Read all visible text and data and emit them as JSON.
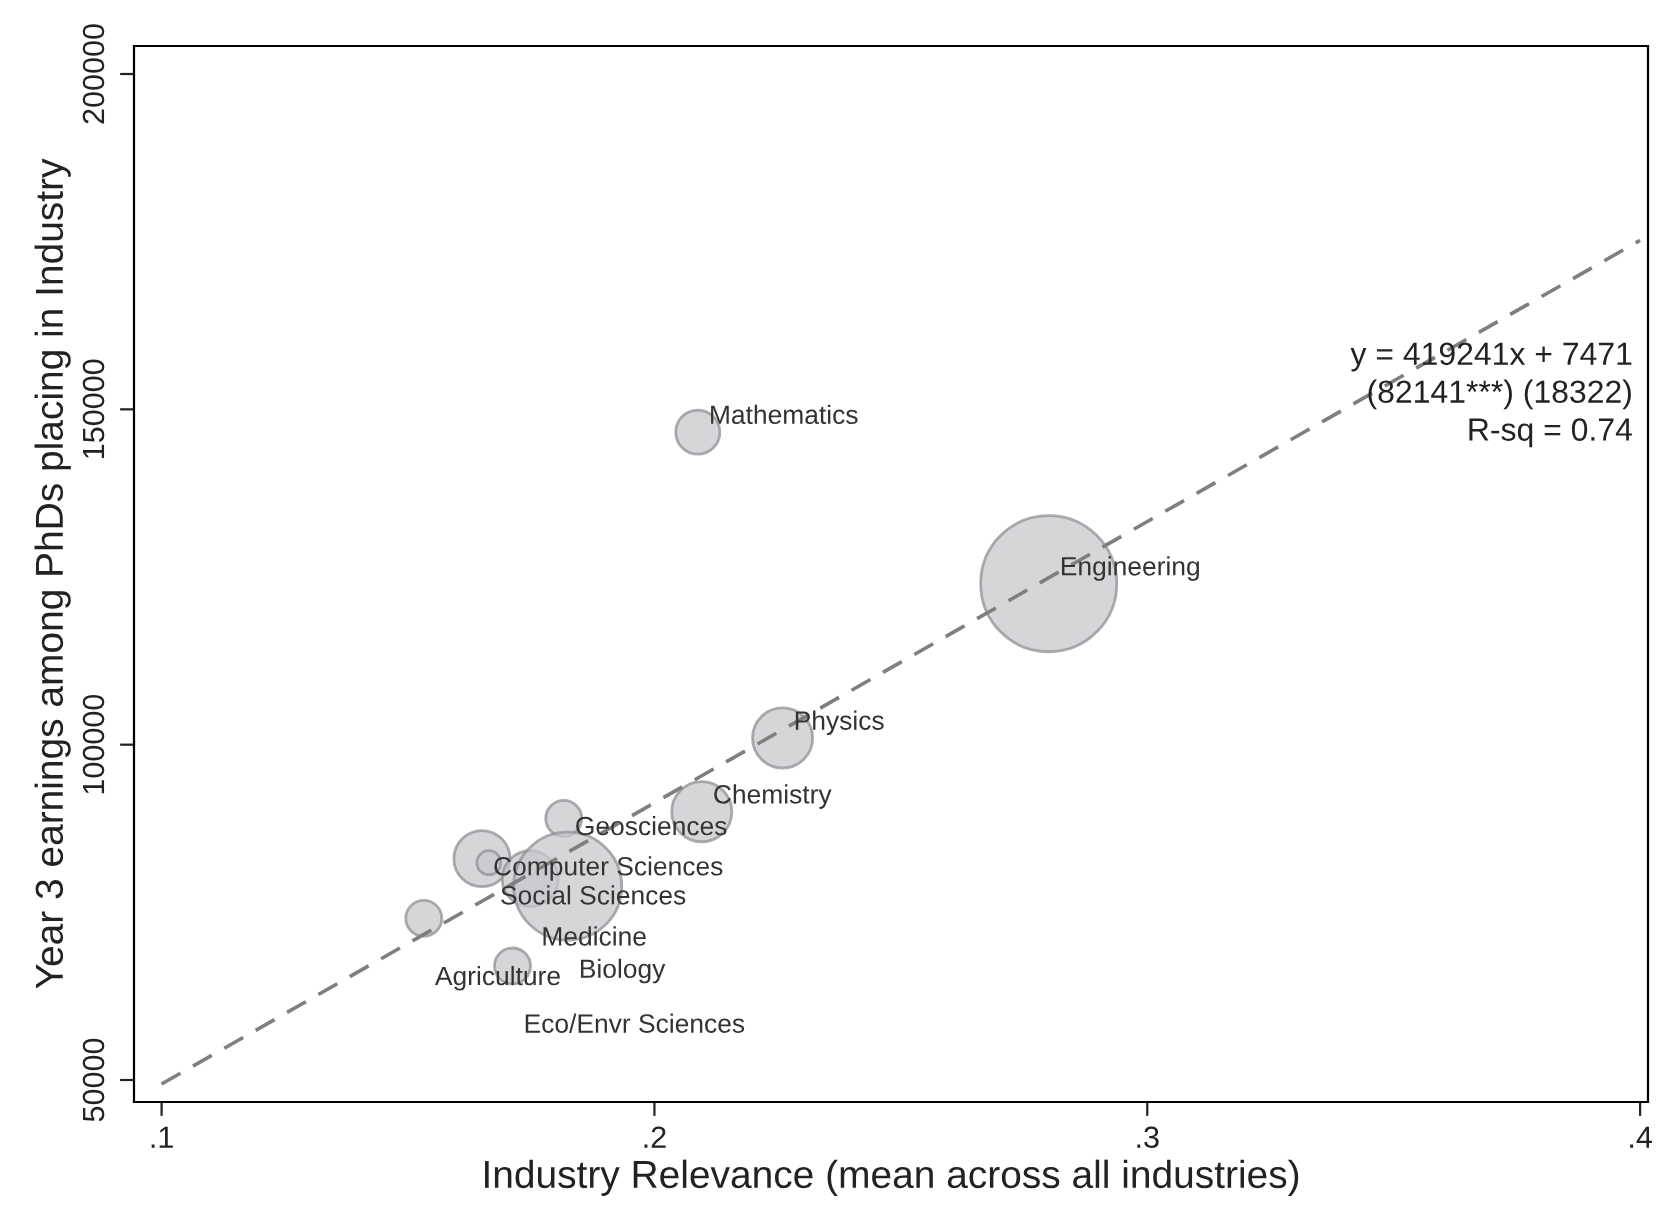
{
  "chart_data": {
    "type": "bubble",
    "xlabel": "Industry Relevance (mean across all industries)",
    "ylabel": "Year 3 earnings among PhDs placing in Industry",
    "xlim": [
      0.0944,
      0.4016
    ],
    "ylim": [
      46720,
      204175
    ],
    "xticks": [
      {
        "value": 0.1,
        "label": ".1"
      },
      {
        "value": 0.2,
        "label": ".2"
      },
      {
        "value": 0.3,
        "label": ".3"
      },
      {
        "value": 0.4,
        "label": ".4"
      }
    ],
    "yticks": [
      50000,
      100000,
      150000,
      200000
    ],
    "grid": false,
    "legend": false,
    "series": [
      {
        "color": "#c8c8cc",
        "x": [
          0.2088,
          0.28,
          0.226,
          0.2096,
          0.1816,
          0.165,
          0.1664,
          0.1748,
          0.1824,
          0.1532,
          0.1712
        ],
        "values": [
          146600,
          124000,
          101000,
          90000,
          89000,
          83000,
          82400,
          80000,
          78900,
          74100,
          67000
        ],
        "sizes": [
          0.105,
          1,
          0.195,
          0.195,
          0.07,
          0.17,
          0.031,
          0.17,
          0.63,
          0.07,
          0.07
        ]
      },
      {
        "type": "line",
        "color": "#7f7f7f",
        "line_style": "dashed",
        "marker": "none",
        "x": [
          0.1,
          0.4
        ],
        "values": [
          49400,
          175200
        ]
      }
    ],
    "annotations": [
      {
        "text": "Mathematics",
        "x": 0.2088,
        "y": 146600
      },
      {
        "text": "Engineering",
        "x": 0.28,
        "y": 124000
      },
      {
        "text": "Physics",
        "x": 0.226,
        "y": 101000
      },
      {
        "text": "Chemistry",
        "x": 0.2096,
        "y": 90000
      },
      {
        "text": "Geosciences",
        "x": 0.1816,
        "y": 89000
      },
      {
        "text": "Computer Sciences",
        "x": 0.165,
        "y": 83000
      },
      {
        "text": "Social Sciences",
        "x": 0.1664,
        "y": 82400
      },
      {
        "text": "Medicine",
        "x": 0.1748,
        "y": 80000
      },
      {
        "text": "Biology",
        "x": 0.1824,
        "y": 78900
      },
      {
        "text": "Agriculture",
        "x": 0.1532,
        "y": 74100
      },
      {
        "text": "Eco/Envr Sciences",
        "x": 0.1712,
        "y": 67000
      },
      "y = 419241x + 7471\n(82141***) (18322)\nR-sq = 0.74"
    ]
  }
}
